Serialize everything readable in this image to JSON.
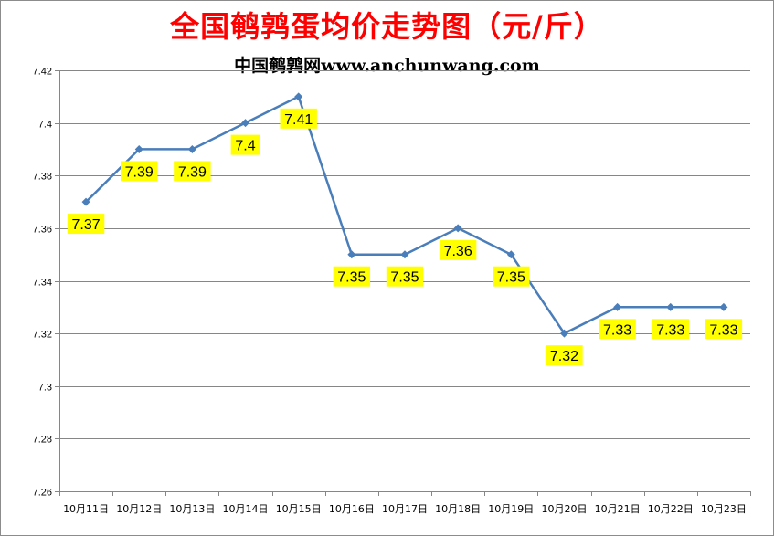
{
  "chart_data": {
    "type": "line",
    "title": "全国鹌鹑蛋均价走势图（元/斤）",
    "subtitle": "中国鹌鹑网www.anchunwang.com",
    "categories": [
      "10月11日",
      "10月12日",
      "10月13日",
      "10月14日",
      "10月15日",
      "10月16日",
      "10月17日",
      "10月18日",
      "10月19日",
      "10月20日",
      "10月21日",
      "10月22日",
      "10月23日"
    ],
    "series": [
      {
        "values": [
          7.37,
          7.39,
          7.39,
          7.4,
          7.41,
          7.35,
          7.35,
          7.36,
          7.35,
          7.32,
          7.33,
          7.33,
          7.33
        ]
      }
    ],
    "data_labels": [
      "7.37",
      "7.39",
      "7.39",
      "7.4",
      "7.41",
      "7.35",
      "7.35",
      "7.36",
      "7.35",
      "7.32",
      "7.33",
      "7.33",
      "7.33"
    ],
    "y_ticks": [
      "7.26",
      "7.28",
      "7.3",
      "7.32",
      "7.34",
      "7.36",
      "7.38",
      "7.4",
      "7.42"
    ],
    "ylim": [
      7.26,
      7.42
    ],
    "grid": true,
    "legend": "none",
    "colors": {
      "line": "#4a7ebb",
      "label_bg": "#ffff00",
      "title": "#ff0000",
      "grid": "#868686"
    }
  }
}
